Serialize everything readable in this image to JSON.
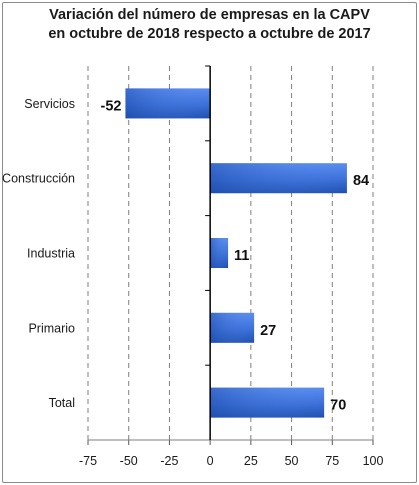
{
  "chart_data": {
    "type": "bar",
    "orientation": "horizontal",
    "title": [
      "Variación del número de empresas en la CAPV",
      "en octubre de 2018 respecto a octubre de 2017"
    ],
    "categories": [
      "Servicios",
      "Construcción",
      "Industria",
      "Primario",
      "Total"
    ],
    "values": [
      -52,
      84,
      11,
      27,
      70
    ],
    "data_labels": [
      "-52",
      "84",
      "11",
      "27",
      "70"
    ],
    "xlim": [
      -75,
      100
    ],
    "xticks": [
      -75,
      -50,
      -25,
      0,
      25,
      50,
      75,
      100
    ],
    "xtick_labels": [
      "-75",
      "-50",
      "-25",
      "0",
      "25",
      "50",
      "75",
      "100"
    ],
    "grid": "vertical dashed",
    "bar_color": "#3a6fd8",
    "bar_color_dark": "#1f4fb0"
  }
}
